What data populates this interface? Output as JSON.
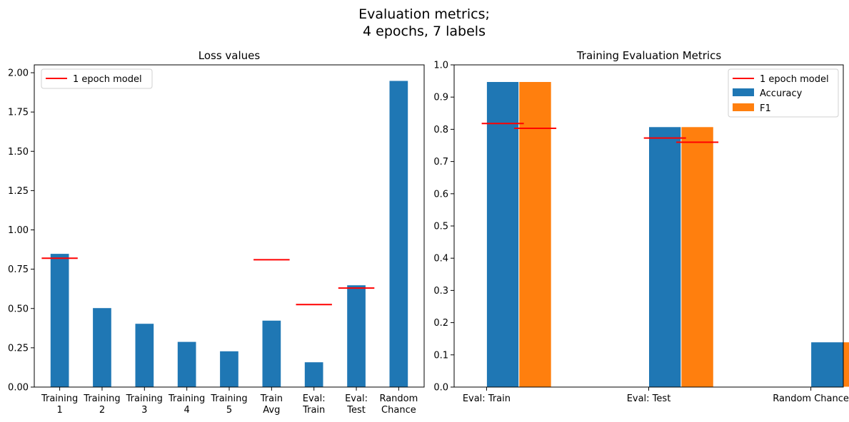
{
  "figure": {
    "title_line1": "Evaluation metrics;",
    "title_line2": "4 epochs, 7 labels"
  },
  "chart_data": [
    {
      "type": "bar",
      "title": "Loss values",
      "xlabel": "",
      "ylabel": "",
      "categories": [
        [
          "Training",
          "1"
        ],
        [
          "Training",
          "2"
        ],
        [
          "Training",
          "3"
        ],
        [
          "Training",
          "4"
        ],
        [
          "Training",
          "5"
        ],
        [
          "Train",
          "Avg"
        ],
        [
          "Eval:",
          "Train"
        ],
        [
          "Eval:",
          "Test"
        ],
        [
          "Random",
          "Chance"
        ]
      ],
      "values": [
        0.85,
        0.505,
        0.405,
        0.29,
        0.23,
        0.425,
        0.16,
        0.65,
        1.95
      ],
      "reference": {
        "name": "1 epoch model",
        "values": [
          0.82,
          null,
          null,
          null,
          null,
          0.81,
          0.525,
          0.63,
          null
        ]
      },
      "ylim": [
        0,
        2.05
      ],
      "yticks": [
        0.0,
        0.25,
        0.5,
        0.75,
        1.0,
        1.25,
        1.5,
        1.75,
        2.0
      ],
      "ytick_labels": [
        "0.00",
        "0.25",
        "0.50",
        "0.75",
        "1.00",
        "1.25",
        "1.50",
        "1.75",
        "2.00"
      ],
      "legend": {
        "position": "top-left",
        "entries": [
          "1 epoch model"
        ]
      },
      "colors": {
        "bar": "#1f77b4",
        "reference": "#ff0000"
      },
      "grid": false
    },
    {
      "type": "bar",
      "title": "Training Evaluation Metrics",
      "xlabel": "",
      "ylabel": "",
      "categories": [
        "Eval: Train",
        "Eval: Test",
        "Random Chance"
      ],
      "series": [
        {
          "name": "Accuracy",
          "values": [
            0.948,
            0.808,
            0.14
          ],
          "color": "#1f77b4"
        },
        {
          "name": "F1",
          "values": [
            0.948,
            0.808,
            0.14
          ],
          "color": "#ff7f0e"
        }
      ],
      "reference": {
        "name": "1 epoch model",
        "accuracy": [
          0.818,
          0.773,
          null
        ],
        "f1": [
          0.803,
          0.76,
          null
        ]
      },
      "ylim": [
        0,
        1.0
      ],
      "yticks": [
        0.0,
        0.1,
        0.2,
        0.3,
        0.4,
        0.5,
        0.6,
        0.7,
        0.8,
        0.9,
        1.0
      ],
      "ytick_labels": [
        "0.0",
        "0.1",
        "0.2",
        "0.3",
        "0.4",
        "0.5",
        "0.6",
        "0.7",
        "0.8",
        "0.9",
        "1.0"
      ],
      "legend": {
        "position": "top-right",
        "entries": [
          "1 epoch model",
          "Accuracy",
          "F1"
        ]
      },
      "colors": {
        "reference": "#ff0000"
      },
      "grid": false
    }
  ]
}
